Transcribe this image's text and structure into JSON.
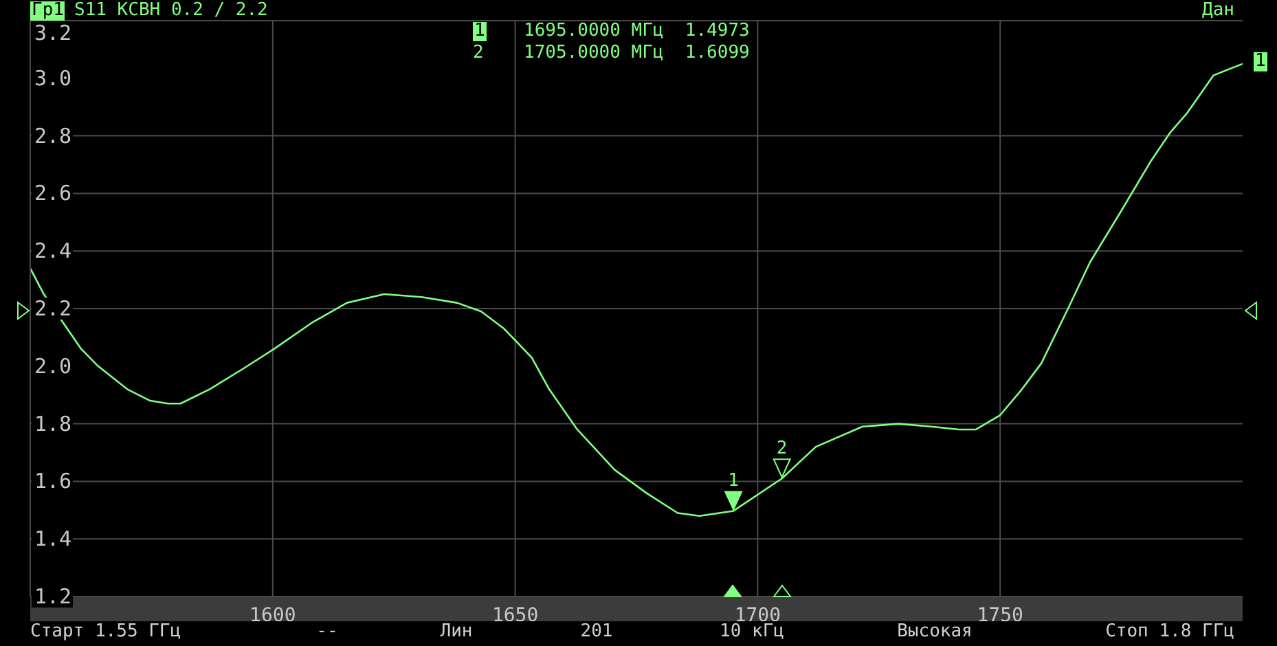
{
  "chart_data": {
    "type": "line",
    "title": "S11 КСВН 0.2 / 2.2",
    "x": [
      1550,
      1552.8,
      1556,
      1560.5,
      1564,
      1570,
      1574.7,
      1578.4,
      1581,
      1587,
      1593.8,
      1600.3,
      1608,
      1615.3,
      1623,
      1630.7,
      1638,
      1643,
      1647.7,
      1653.4,
      1657,
      1662.8,
      1670.5,
      1677,
      1683.5,
      1688,
      1695,
      1705,
      1712,
      1721.6,
      1729,
      1735.8,
      1741.5,
      1745,
      1750,
      1754.5,
      1758.5,
      1764,
      1768.5,
      1775,
      1781,
      1785,
      1788.6,
      1794,
      1800
    ],
    "series": [
      {
        "color": "#80ff80",
        "values": [
          2.34,
          2.25,
          2.17,
          2.06,
          2.0,
          1.92,
          1.88,
          1.87,
          1.87,
          1.92,
          1.99,
          2.06,
          2.15,
          2.22,
          2.25,
          2.24,
          2.22,
          2.19,
          2.13,
          2.03,
          1.92,
          1.78,
          1.64,
          1.56,
          1.49,
          1.48,
          1.4973,
          1.6099,
          1.72,
          1.79,
          1.8,
          1.79,
          1.78,
          1.78,
          1.83,
          1.92,
          2.01,
          2.2,
          2.36,
          2.54,
          2.71,
          2.81,
          2.88,
          3.01,
          3.05
        ]
      }
    ],
    "xlim": [
      1550,
      1800
    ],
    "xticks": [
      1600,
      1650,
      1700,
      1750
    ],
    "ylim": [
      1.2,
      3.2
    ],
    "yticks": [
      1.2,
      1.4,
      1.6,
      1.8,
      {
        "value": 2,
        "label": "2.0"
      },
      2.2,
      2.4,
      2.6,
      2.8,
      {
        "value": 3,
        "label": "3.0"
      },
      3.2
    ],
    "grid": true,
    "marker": "none",
    "line_style": "solid",
    "annotations": [
      "Гр1",
      "Дан",
      "1",
      "1695.0000 МГц  1.4973",
      "2",
      "1705.0000 МГц  1.6099",
      "Старт 1.55 ГГц",
      "--",
      "Лин",
      "201",
      "10 кГц",
      "Высокая",
      "Стоп 1.8 ГГц",
      "1",
      {
        "text": "1",
        "x": 1695,
        "y": 1.4973
      },
      {
        "text": "2",
        "x": 1705,
        "y": 1.6099
      }
    ]
  }
}
